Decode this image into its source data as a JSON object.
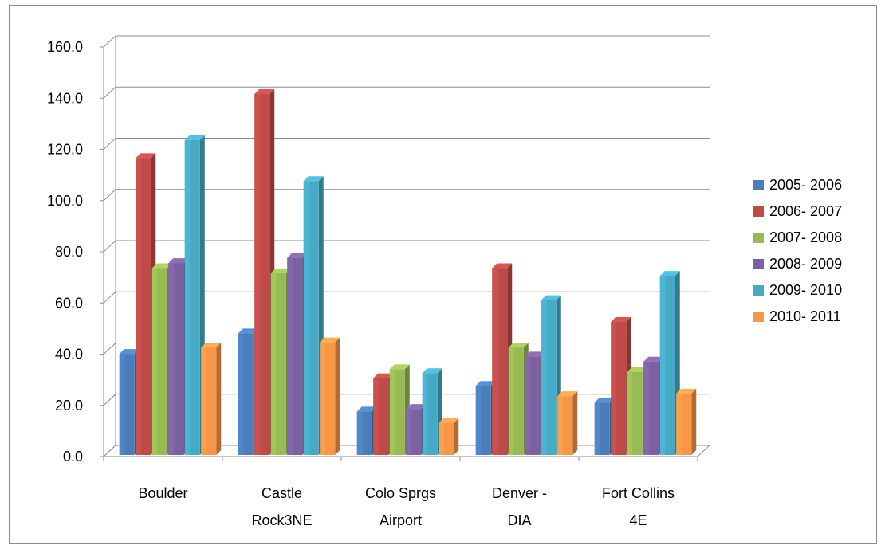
{
  "chart_data": {
    "type": "bar",
    "style": "3d-clustered-column",
    "title": "",
    "xlabel": "",
    "ylabel": "",
    "ylim": [
      0,
      160
    ],
    "yticks": [
      "0.0",
      "20.0",
      "40.0",
      "60.0",
      "80.0",
      "100.0",
      "120.0",
      "140.0",
      "160.0"
    ],
    "grid": true,
    "legend_position": "right",
    "categories": [
      [
        "Boulder"
      ],
      [
        "Castle",
        "Rock3NE"
      ],
      [
        "Colo Sprgs",
        "Airport"
      ],
      [
        "Denver -",
        "DIA"
      ],
      [
        "Fort Collins",
        "4E"
      ]
    ],
    "series": [
      {
        "name": "2005- 2006",
        "color": "#4a7ebb",
        "values": [
          39.5,
          47.5,
          17.0,
          27.0,
          20.5
        ]
      },
      {
        "name": "2006- 2007",
        "color": "#be4b48",
        "values": [
          116.0,
          141.0,
          30.0,
          73.0,
          52.0
        ]
      },
      {
        "name": "2007- 2008",
        "color": "#98b954",
        "values": [
          73.0,
          71.0,
          33.5,
          42.0,
          32.5
        ]
      },
      {
        "name": "2008- 2009",
        "color": "#7d60a0",
        "values": [
          75.0,
          77.0,
          18.0,
          38.5,
          36.5
        ]
      },
      {
        "name": "2009- 2010",
        "color": "#46aac5",
        "values": [
          123.0,
          107.0,
          32.0,
          60.5,
          70.0
        ]
      },
      {
        "name": "2010- 2011",
        "color": "#f79646",
        "values": [
          42.0,
          44.0,
          12.5,
          23.0,
          24.0
        ]
      }
    ]
  }
}
